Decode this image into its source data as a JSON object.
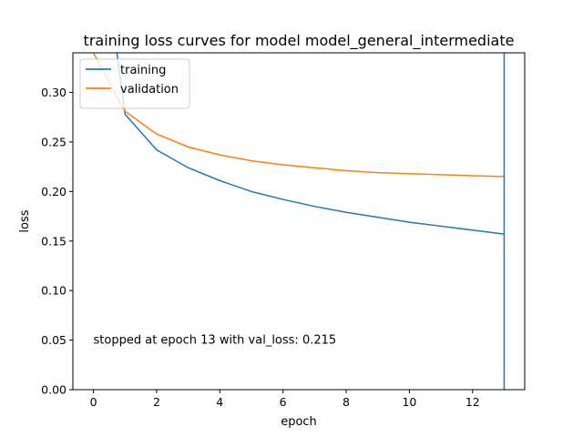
{
  "chart_data": {
    "type": "line",
    "title": "training loss curves for model model_general_intermediate",
    "xlabel": "epoch",
    "ylabel": "loss",
    "xlim": [
      -0.65,
      13.65
    ],
    "ylim": [
      0.0,
      0.34
    ],
    "xticks": [
      0,
      2,
      4,
      6,
      8,
      10,
      12
    ],
    "yticks": [
      0.0,
      0.05,
      0.1,
      0.15,
      0.2,
      0.25,
      0.3
    ],
    "yticks_text": [
      "0.00",
      "0.05",
      "0.10",
      "0.15",
      "0.20",
      "0.25",
      "0.30"
    ],
    "grid": false,
    "legend_position": "upper-left",
    "x": [
      0,
      1,
      2,
      3,
      4,
      5,
      6,
      7,
      8,
      9,
      10,
      11,
      12,
      13
    ],
    "series": [
      {
        "name": "training",
        "color": "#1f77b4",
        "values": [
          0.52,
          0.278,
          0.242,
          0.224,
          0.211,
          0.2,
          0.192,
          0.185,
          0.179,
          0.174,
          0.169,
          0.165,
          0.161,
          0.157
        ]
      },
      {
        "name": "validation",
        "color": "#ff7f0e",
        "values": [
          0.34,
          0.281,
          0.258,
          0.245,
          0.237,
          0.231,
          0.227,
          0.224,
          0.221,
          0.219,
          0.218,
          0.217,
          0.216,
          0.215
        ]
      }
    ],
    "vline": {
      "x": 13,
      "color": "#1f77b4"
    },
    "annotation": {
      "text": "stopped at epoch 13 with val_loss: 0.215",
      "x": 0,
      "y": 0.05
    }
  }
}
